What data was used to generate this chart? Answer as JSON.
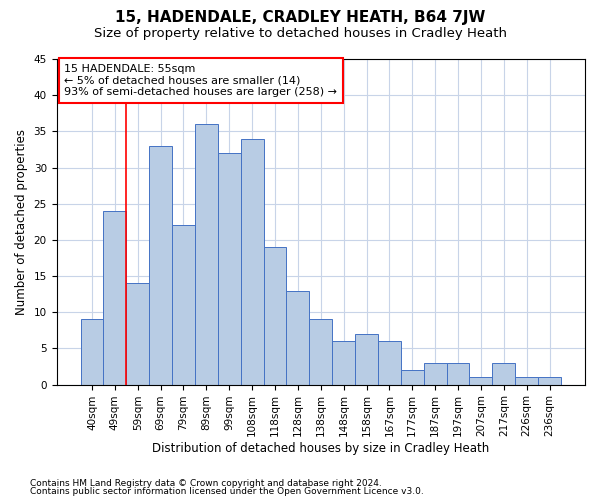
{
  "title": "15, HADENDALE, CRADLEY HEATH, B64 7JW",
  "subtitle": "Size of property relative to detached houses in Cradley Heath",
  "xlabel": "Distribution of detached houses by size in Cradley Heath",
  "ylabel": "Number of detached properties",
  "footnote1": "Contains HM Land Registry data © Crown copyright and database right 2024.",
  "footnote2": "Contains public sector information licensed under the Open Government Licence v3.0.",
  "bar_labels": [
    "40sqm",
    "49sqm",
    "59sqm",
    "69sqm",
    "79sqm",
    "89sqm",
    "99sqm",
    "108sqm",
    "118sqm",
    "128sqm",
    "138sqm",
    "148sqm",
    "158sqm",
    "167sqm",
    "177sqm",
    "187sqm",
    "197sqm",
    "207sqm",
    "217sqm",
    "226sqm",
    "236sqm"
  ],
  "bar_values": [
    9,
    24,
    14,
    33,
    22,
    36,
    32,
    34,
    19,
    13,
    9,
    6,
    7,
    6,
    2,
    3,
    3,
    1,
    3,
    1,
    1
  ],
  "bar_color": "#b8cce4",
  "bar_edge_color": "#4472c4",
  "ylim": [
    0,
    45
  ],
  "yticks": [
    0,
    5,
    10,
    15,
    20,
    25,
    30,
    35,
    40,
    45
  ],
  "property_line_x": 1.5,
  "annotation_box_text": "15 HADENDALE: 55sqm\n← 5% of detached houses are smaller (14)\n93% of semi-detached houses are larger (258) →",
  "background_color": "#ffffff",
  "grid_color": "#c8d4e8",
  "title_fontsize": 11,
  "subtitle_fontsize": 9.5,
  "axis_label_fontsize": 8.5,
  "tick_fontsize": 7.5,
  "annotation_fontsize": 8,
  "footnote_fontsize": 6.5
}
